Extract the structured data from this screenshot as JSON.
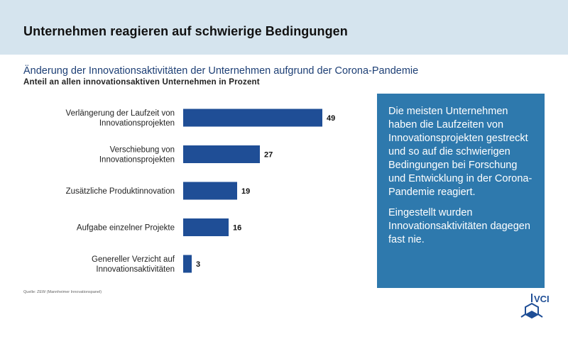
{
  "header": {
    "title": "Unternehmen  reagieren auf schwierige Bedingungen"
  },
  "chart_data": {
    "type": "bar",
    "orientation": "horizontal",
    "title": "Änderung der Innovationsaktivitäten der Unternehmen aufgrund der Corona-Pandemie",
    "subtitle": "Anteil  an allen innovationsaktiven  Unternehmen  in Prozent",
    "categories": [
      [
        "Verlängerung der Laufzeit von",
        "Innovationsprojekten"
      ],
      [
        "Verschiebung  von",
        "Innovationsprojekten"
      ],
      [
        "Zusätzliche Produktinnovation"
      ],
      [
        "Aufgabe einzelner Projekte"
      ],
      [
        "Genereller  Verzicht auf",
        "Innovationsaktivitäten"
      ]
    ],
    "values": [
      49,
      27,
      19,
      16,
      3
    ],
    "xlim": [
      0,
      50
    ],
    "grid": false,
    "legend": "none"
  },
  "source": "Quelle: ZEW (Mannheimer Innovationspanel)",
  "info_box": {
    "paragraph1": "Die meisten Unternehmen haben die Laufzeiten von Innovationsprojekten gestreckt und so auf die schwierigen Bedingungen bei Forschung und Entwicklung in der Corona-Pandemie reagiert.",
    "paragraph2": "Eingestellt wurden Innovationsaktivitäten dagegen fast nie."
  },
  "logo": {
    "text": "VCI",
    "icon": "benzene-flask-icon"
  },
  "colors": {
    "bar": "#1f4e96",
    "header_band": "#d5e4ee",
    "info_box": "#2e79ad",
    "title": "#1d3f75"
  }
}
